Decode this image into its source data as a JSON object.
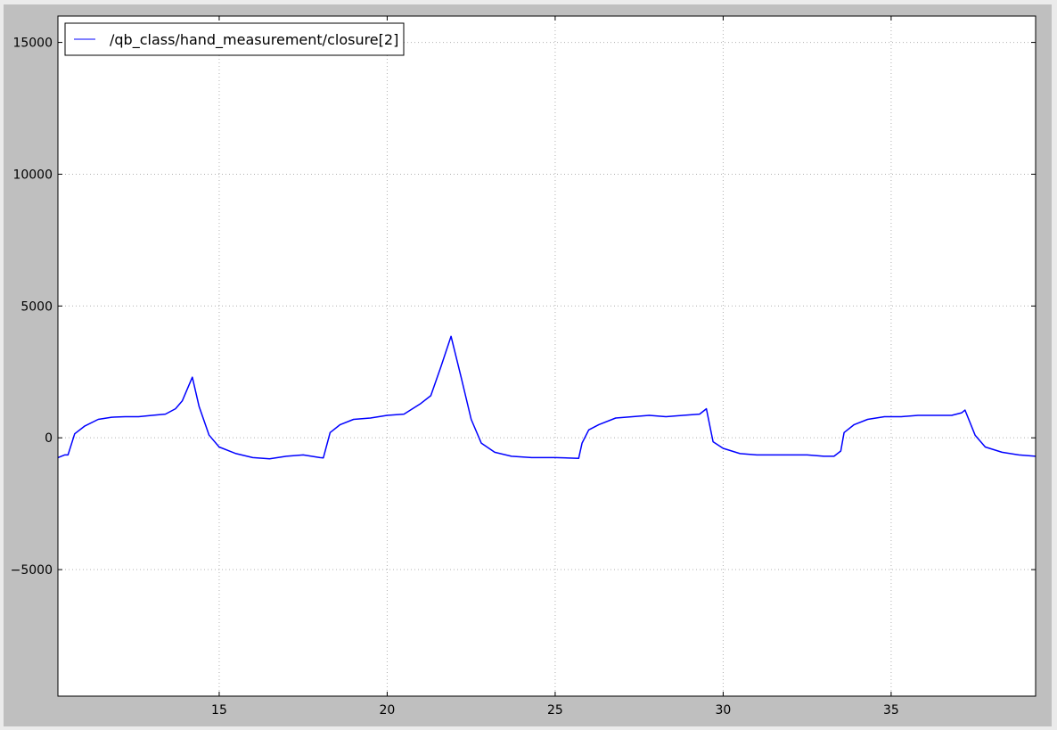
{
  "chart_data": {
    "type": "line",
    "title": "",
    "xlabel": "",
    "ylabel": "",
    "xlim": [
      10.2,
      39.3
    ],
    "ylim": [
      -9800,
      16000
    ],
    "x_ticks": [
      15,
      20,
      25,
      30,
      35
    ],
    "y_ticks": [
      -5000,
      0,
      5000,
      10000,
      15000
    ],
    "x_tick_labels": [
      "15",
      "20",
      "25",
      "30",
      "35"
    ],
    "y_tick_labels": [
      "−5000",
      "0",
      "5000",
      "10000",
      "15000"
    ],
    "grid": true,
    "legend_position": "top-left",
    "line_color": "#0000ff",
    "series": [
      {
        "name": "/qb_class/hand_measurement/closure[2]",
        "x": [
          10.2,
          10.4,
          10.5,
          10.7,
          11.0,
          11.4,
          11.8,
          12.2,
          12.6,
          13.0,
          13.4,
          13.7,
          13.9,
          14.2,
          14.4,
          14.7,
          15.0,
          15.5,
          16.0,
          16.5,
          17.0,
          17.5,
          18.0,
          18.1,
          18.3,
          18.6,
          19.0,
          19.5,
          20.0,
          20.5,
          21.0,
          21.3,
          21.6,
          21.9,
          22.2,
          22.5,
          22.8,
          23.2,
          23.7,
          24.3,
          25.0,
          25.7,
          25.8,
          26.0,
          26.3,
          26.8,
          27.3,
          27.8,
          28.3,
          28.8,
          29.3,
          29.5,
          29.7,
          30.0,
          30.5,
          31.0,
          31.5,
          32.0,
          32.5,
          33.0,
          33.3,
          33.5,
          33.6,
          33.9,
          34.3,
          34.8,
          35.3,
          35.8,
          36.3,
          36.8,
          37.1,
          37.2,
          37.5,
          37.8,
          38.3,
          38.8,
          39.3
        ],
        "y": [
          -750,
          -650,
          -650,
          150,
          450,
          700,
          780,
          800,
          800,
          850,
          900,
          1100,
          1400,
          2300,
          1200,
          100,
          -350,
          -600,
          -750,
          -800,
          -700,
          -650,
          -750,
          -760,
          200,
          500,
          700,
          750,
          850,
          900,
          1300,
          1600,
          2700,
          3850,
          2300,
          700,
          -200,
          -550,
          -700,
          -750,
          -750,
          -780,
          -200,
          300,
          500,
          750,
          800,
          850,
          800,
          850,
          900,
          1100,
          -150,
          -400,
          -600,
          -650,
          -650,
          -650,
          -650,
          -700,
          -700,
          -500,
          200,
          500,
          700,
          800,
          800,
          850,
          850,
          850,
          950,
          1050,
          100,
          -350,
          -550,
          -650,
          -700
        ]
      }
    ]
  }
}
